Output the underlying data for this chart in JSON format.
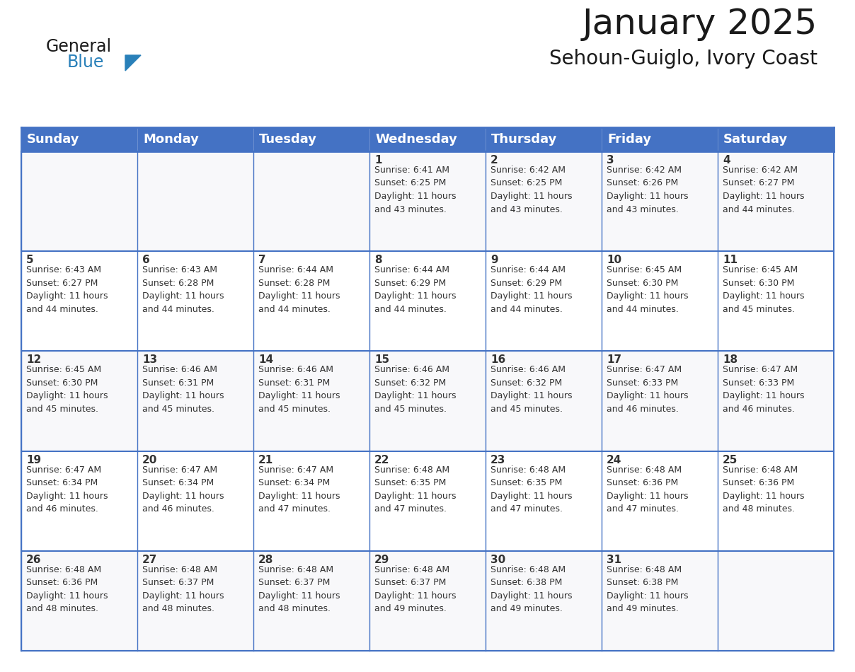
{
  "title": "January 2025",
  "subtitle": "Sehoun-Guiglo, Ivory Coast",
  "header_bg_color": "#4472C4",
  "header_text_color": "#FFFFFF",
  "border_color": "#4472C4",
  "row_border_color": "#4472C4",
  "text_color": "#333333",
  "days_of_week": [
    "Sunday",
    "Monday",
    "Tuesday",
    "Wednesday",
    "Thursday",
    "Friday",
    "Saturday"
  ],
  "title_fontsize": 36,
  "subtitle_fontsize": 20,
  "header_fontsize": 13,
  "cell_fontsize": 9,
  "day_num_fontsize": 11,
  "logo_general_color": "#1a1a1a",
  "logo_blue_color": "#2980b9",
  "logo_triangle_color": "#2980b9",
  "calendar_data": [
    [
      {
        "day": "",
        "info": ""
      },
      {
        "day": "",
        "info": ""
      },
      {
        "day": "",
        "info": ""
      },
      {
        "day": "1",
        "info": "Sunrise: 6:41 AM\nSunset: 6:25 PM\nDaylight: 11 hours\nand 43 minutes."
      },
      {
        "day": "2",
        "info": "Sunrise: 6:42 AM\nSunset: 6:25 PM\nDaylight: 11 hours\nand 43 minutes."
      },
      {
        "day": "3",
        "info": "Sunrise: 6:42 AM\nSunset: 6:26 PM\nDaylight: 11 hours\nand 43 minutes."
      },
      {
        "day": "4",
        "info": "Sunrise: 6:42 AM\nSunset: 6:27 PM\nDaylight: 11 hours\nand 44 minutes."
      }
    ],
    [
      {
        "day": "5",
        "info": "Sunrise: 6:43 AM\nSunset: 6:27 PM\nDaylight: 11 hours\nand 44 minutes."
      },
      {
        "day": "6",
        "info": "Sunrise: 6:43 AM\nSunset: 6:28 PM\nDaylight: 11 hours\nand 44 minutes."
      },
      {
        "day": "7",
        "info": "Sunrise: 6:44 AM\nSunset: 6:28 PM\nDaylight: 11 hours\nand 44 minutes."
      },
      {
        "day": "8",
        "info": "Sunrise: 6:44 AM\nSunset: 6:29 PM\nDaylight: 11 hours\nand 44 minutes."
      },
      {
        "day": "9",
        "info": "Sunrise: 6:44 AM\nSunset: 6:29 PM\nDaylight: 11 hours\nand 44 minutes."
      },
      {
        "day": "10",
        "info": "Sunrise: 6:45 AM\nSunset: 6:30 PM\nDaylight: 11 hours\nand 44 minutes."
      },
      {
        "day": "11",
        "info": "Sunrise: 6:45 AM\nSunset: 6:30 PM\nDaylight: 11 hours\nand 45 minutes."
      }
    ],
    [
      {
        "day": "12",
        "info": "Sunrise: 6:45 AM\nSunset: 6:30 PM\nDaylight: 11 hours\nand 45 minutes."
      },
      {
        "day": "13",
        "info": "Sunrise: 6:46 AM\nSunset: 6:31 PM\nDaylight: 11 hours\nand 45 minutes."
      },
      {
        "day": "14",
        "info": "Sunrise: 6:46 AM\nSunset: 6:31 PM\nDaylight: 11 hours\nand 45 minutes."
      },
      {
        "day": "15",
        "info": "Sunrise: 6:46 AM\nSunset: 6:32 PM\nDaylight: 11 hours\nand 45 minutes."
      },
      {
        "day": "16",
        "info": "Sunrise: 6:46 AM\nSunset: 6:32 PM\nDaylight: 11 hours\nand 45 minutes."
      },
      {
        "day": "17",
        "info": "Sunrise: 6:47 AM\nSunset: 6:33 PM\nDaylight: 11 hours\nand 46 minutes."
      },
      {
        "day": "18",
        "info": "Sunrise: 6:47 AM\nSunset: 6:33 PM\nDaylight: 11 hours\nand 46 minutes."
      }
    ],
    [
      {
        "day": "19",
        "info": "Sunrise: 6:47 AM\nSunset: 6:34 PM\nDaylight: 11 hours\nand 46 minutes."
      },
      {
        "day": "20",
        "info": "Sunrise: 6:47 AM\nSunset: 6:34 PM\nDaylight: 11 hours\nand 46 minutes."
      },
      {
        "day": "21",
        "info": "Sunrise: 6:47 AM\nSunset: 6:34 PM\nDaylight: 11 hours\nand 47 minutes."
      },
      {
        "day": "22",
        "info": "Sunrise: 6:48 AM\nSunset: 6:35 PM\nDaylight: 11 hours\nand 47 minutes."
      },
      {
        "day": "23",
        "info": "Sunrise: 6:48 AM\nSunset: 6:35 PM\nDaylight: 11 hours\nand 47 minutes."
      },
      {
        "day": "24",
        "info": "Sunrise: 6:48 AM\nSunset: 6:36 PM\nDaylight: 11 hours\nand 47 minutes."
      },
      {
        "day": "25",
        "info": "Sunrise: 6:48 AM\nSunset: 6:36 PM\nDaylight: 11 hours\nand 48 minutes."
      }
    ],
    [
      {
        "day": "26",
        "info": "Sunrise: 6:48 AM\nSunset: 6:36 PM\nDaylight: 11 hours\nand 48 minutes."
      },
      {
        "day": "27",
        "info": "Sunrise: 6:48 AM\nSunset: 6:37 PM\nDaylight: 11 hours\nand 48 minutes."
      },
      {
        "day": "28",
        "info": "Sunrise: 6:48 AM\nSunset: 6:37 PM\nDaylight: 11 hours\nand 48 minutes."
      },
      {
        "day": "29",
        "info": "Sunrise: 6:48 AM\nSunset: 6:37 PM\nDaylight: 11 hours\nand 49 minutes."
      },
      {
        "day": "30",
        "info": "Sunrise: 6:48 AM\nSunset: 6:38 PM\nDaylight: 11 hours\nand 49 minutes."
      },
      {
        "day": "31",
        "info": "Sunrise: 6:48 AM\nSunset: 6:38 PM\nDaylight: 11 hours\nand 49 minutes."
      },
      {
        "day": "",
        "info": ""
      }
    ]
  ]
}
